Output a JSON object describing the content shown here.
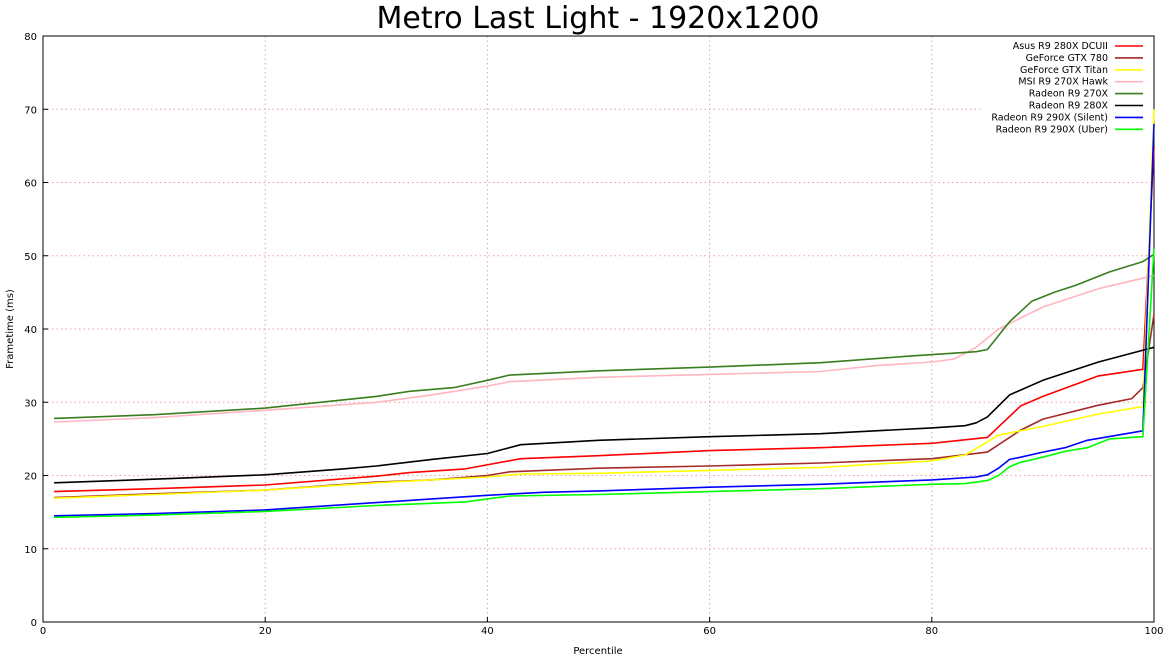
{
  "chart_data": {
    "type": "line",
    "title": "Metro Last Light - 1920x1200",
    "xlabel": "Percentile",
    "ylabel": "Frametime (ms)",
    "xlim": [
      0,
      100
    ],
    "ylim": [
      0,
      80
    ],
    "xticks": [
      "0",
      "20",
      "40",
      "60",
      "80",
      "100"
    ],
    "yticks": [
      "0",
      "10",
      "20",
      "30",
      "40",
      "50",
      "60",
      "70",
      "80"
    ],
    "grid": true,
    "legend_position": "top-right",
    "series": [
      {
        "name": "Asus R9 280X DCUII",
        "color": "#ff0000",
        "x": [
          1,
          10,
          20,
          30,
          33,
          38,
          43,
          50,
          60,
          70,
          80,
          85,
          88,
          90,
          95,
          99,
          100
        ],
        "y": [
          17.8,
          18.2,
          18.7,
          19.9,
          20.4,
          20.9,
          22.3,
          22.7,
          23.4,
          23.8,
          24.4,
          25.2,
          29.5,
          30.8,
          33.6,
          34.5,
          65
        ]
      },
      {
        "name": "GeForce GTX 780",
        "color": "#a52a2a",
        "x": [
          1,
          10,
          20,
          30,
          35,
          40,
          42,
          50,
          60,
          70,
          80,
          85,
          88,
          90,
          95,
          98,
          99,
          100
        ],
        "y": [
          17.0,
          17.5,
          18.0,
          19.1,
          19.4,
          20.0,
          20.5,
          21.0,
          21.3,
          21.7,
          22.3,
          23.2,
          26.2,
          27.7,
          29.6,
          30.5,
          32.0,
          42
        ]
      },
      {
        "name": "GeForce GTX Titan",
        "color": "#ffff00",
        "x": [
          1,
          10,
          20,
          30,
          40,
          43,
          50,
          60,
          70,
          80,
          83,
          86,
          90,
          95,
          99,
          100
        ],
        "y": [
          16.9,
          17.4,
          18.0,
          19.0,
          19.8,
          20.2,
          20.3,
          20.7,
          21.1,
          22.0,
          22.8,
          25.5,
          26.7,
          28.4,
          29.4,
          70
        ]
      },
      {
        "name": "MSI R9 270X Hawk",
        "color": "#ffb6c1",
        "x": [
          1,
          10,
          20,
          30,
          35,
          40,
          42,
          50,
          60,
          70,
          75,
          80,
          82,
          84,
          86,
          88,
          90,
          95,
          100
        ],
        "y": [
          27.3,
          27.9,
          28.9,
          30.0,
          31.0,
          32.2,
          32.8,
          33.4,
          33.8,
          34.2,
          35.0,
          35.5,
          35.9,
          37.5,
          40.0,
          41.5,
          43.0,
          45.5,
          47.3
        ]
      },
      {
        "name": "Radeon R9 270X",
        "color": "#3a7d1e",
        "x": [
          1,
          10,
          20,
          30,
          33,
          37,
          40,
          42,
          50,
          60,
          70,
          78,
          84,
          85,
          87,
          89,
          91,
          93,
          96,
          99,
          100
        ],
        "y": [
          27.8,
          28.3,
          29.2,
          30.8,
          31.5,
          32.0,
          33.0,
          33.7,
          34.3,
          34.8,
          35.4,
          36.3,
          36.9,
          37.2,
          41.0,
          43.8,
          45.0,
          46.0,
          47.8,
          49.2,
          50.2
        ]
      },
      {
        "name": "Radeon R9 280X",
        "color": "#000000",
        "x": [
          1,
          10,
          20,
          27,
          30,
          35,
          40,
          43,
          50,
          60,
          70,
          80,
          83,
          84,
          85,
          87,
          90,
          95,
          100
        ],
        "y": [
          19.0,
          19.5,
          20.1,
          20.9,
          21.3,
          22.2,
          23.0,
          24.2,
          24.8,
          25.3,
          25.7,
          26.5,
          26.8,
          27.2,
          28.0,
          31.0,
          33.0,
          35.5,
          37.5
        ]
      },
      {
        "name": "Radeon R9 290X (Silent)",
        "color": "#0000ff",
        "x": [
          1,
          10,
          20,
          30,
          35,
          40,
          45,
          50,
          60,
          70,
          80,
          84,
          85,
          86,
          87,
          88,
          90,
          92,
          94,
          99,
          100
        ],
        "y": [
          14.5,
          14.8,
          15.3,
          16.3,
          16.8,
          17.3,
          17.7,
          17.9,
          18.4,
          18.8,
          19.4,
          19.8,
          20.1,
          21.0,
          22.2,
          22.5,
          23.2,
          23.8,
          24.8,
          26.1,
          68
        ]
      },
      {
        "name": "Radeon R9 290X (Uber)",
        "color": "#00ff00",
        "x": [
          1,
          10,
          20,
          30,
          35,
          38,
          40,
          42,
          50,
          60,
          70,
          80,
          83,
          85,
          86,
          87,
          88,
          90,
          92,
          94,
          96,
          99,
          100
        ],
        "y": [
          14.3,
          14.6,
          15.1,
          15.9,
          16.2,
          16.4,
          16.8,
          17.2,
          17.4,
          17.8,
          18.2,
          18.8,
          18.9,
          19.3,
          20.0,
          21.2,
          21.8,
          22.5,
          23.3,
          23.8,
          25.0,
          25.3,
          51
        ]
      }
    ]
  }
}
